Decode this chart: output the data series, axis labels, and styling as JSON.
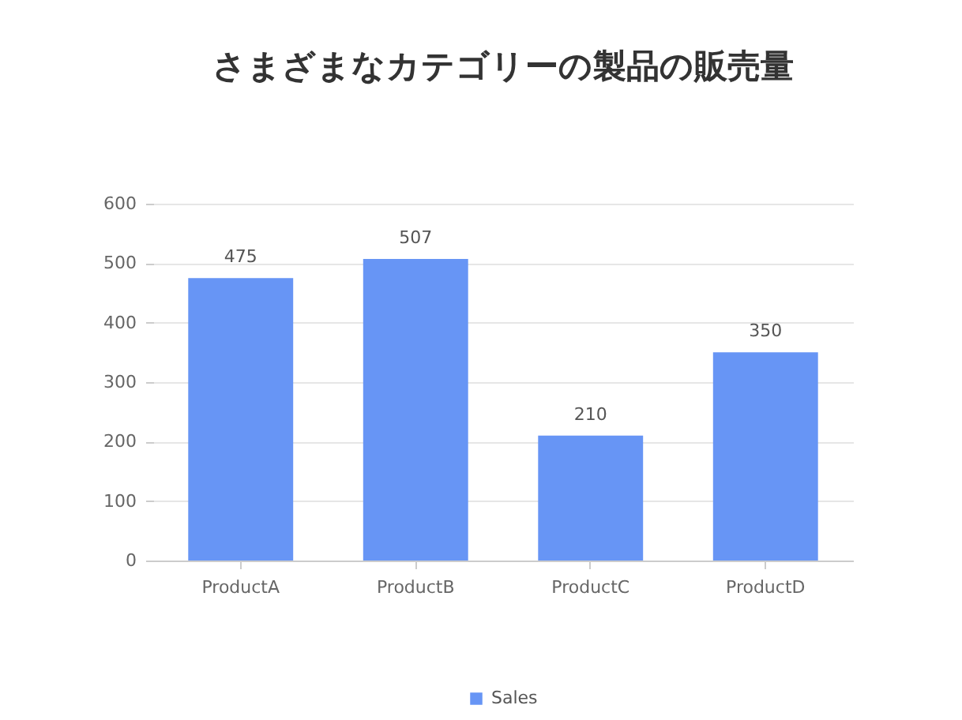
{
  "chart_data": {
    "type": "bar",
    "title": "さまざまなカテゴリーの製品の販売量",
    "categories": [
      "ProductA",
      "ProductB",
      "ProductC",
      "ProductD"
    ],
    "series": [
      {
        "name": "Sales",
        "color": "#6795f5",
        "values": [
          475,
          507,
          210,
          350
        ]
      }
    ],
    "ylim": [
      0,
      600
    ],
    "yticks": [
      0,
      100,
      200,
      300,
      400,
      500,
      600
    ],
    "grid": "y",
    "legend": "bottom",
    "data_labels": true
  }
}
